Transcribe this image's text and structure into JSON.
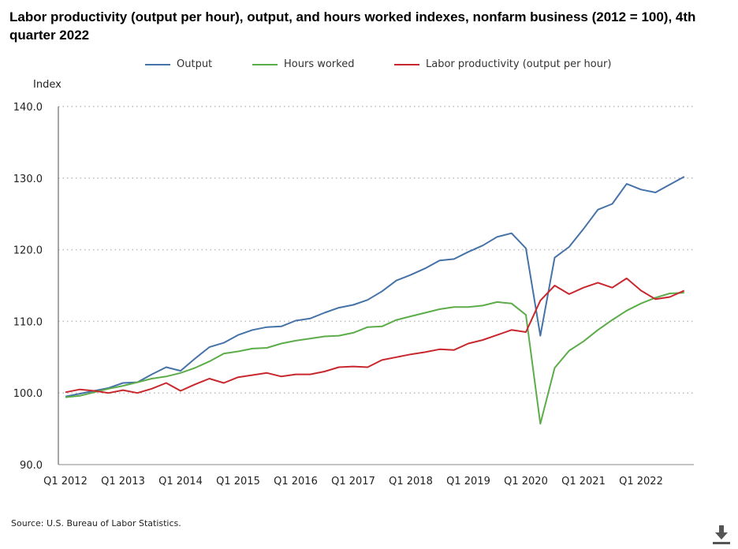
{
  "chart_data": {
    "type": "line",
    "title": "Labor productivity (output per hour), output, and hours worked indexes, nonfarm business (2012 = 100), 4th quarter 2022",
    "ylabel": "Index",
    "xlabel": "",
    "ylim": [
      90,
      140
    ],
    "yticks": [
      "90.0",
      "100.0",
      "110.0",
      "120.0",
      "130.0",
      "140.0"
    ],
    "xticks": [
      "Q1 2012",
      "Q1 2013",
      "Q1 2014",
      "Q1 2015",
      "Q1 2016",
      "Q1 2017",
      "Q1 2018",
      "Q1 2019",
      "Q1 2020",
      "Q1 2021",
      "Q1 2022"
    ],
    "x_start": "Q1 2012",
    "x_end": "Q4 2022",
    "grid": "horizontal dotted",
    "legend": "top",
    "series": [
      {
        "name": "Output",
        "color": "#4572a7",
        "values": [
          99.5,
          99.9,
          100.3,
          100.7,
          101.4,
          101.5,
          102.6,
          103.6,
          103.1,
          104.8,
          106.4,
          107.0,
          108.1,
          108.8,
          109.2,
          109.3,
          110.1,
          110.4,
          111.2,
          111.9,
          112.3,
          113.0,
          114.2,
          115.7,
          116.5,
          117.4,
          118.5,
          118.7,
          119.7,
          120.6,
          121.8,
          122.3,
          120.2,
          108.0,
          118.9,
          120.4,
          122.9,
          125.6,
          126.4,
          129.2,
          128.4,
          128.0,
          129.1,
          130.2
        ]
      },
      {
        "name": "Hours worked",
        "color": "#5cac4a",
        "values": [
          99.4,
          99.6,
          100.1,
          100.6,
          101.0,
          101.5,
          102.0,
          102.3,
          102.8,
          103.5,
          104.4,
          105.5,
          105.8,
          106.2,
          106.3,
          106.9,
          107.3,
          107.6,
          107.9,
          108.0,
          108.4,
          109.2,
          109.3,
          110.2,
          110.7,
          111.2,
          111.7,
          112.0,
          112.0,
          112.2,
          112.7,
          112.5,
          110.9,
          95.7,
          103.5,
          105.9,
          107.2,
          108.8,
          110.2,
          111.5,
          112.5,
          113.3,
          113.9,
          114.0
        ]
      },
      {
        "name": "Labor productivity (output per hour)",
        "color": "#c8282d",
        "values": [
          100.1,
          100.5,
          100.3,
          100.0,
          100.4,
          100.0,
          100.6,
          101.4,
          100.3,
          101.2,
          102.0,
          101.4,
          102.2,
          102.5,
          102.8,
          102.3,
          102.6,
          102.6,
          103.0,
          103.6,
          103.7,
          103.6,
          104.6,
          105.0,
          105.4,
          105.7,
          106.1,
          106.0,
          106.9,
          107.4,
          108.1,
          108.8,
          108.5,
          112.9,
          115.0,
          113.8,
          114.7,
          115.4,
          114.7,
          116.0,
          114.3,
          113.1,
          113.4,
          114.3
        ]
      }
    ]
  },
  "source": "Source: U.S. Bureau of Labor Statistics.",
  "download_icon": "download-icon"
}
